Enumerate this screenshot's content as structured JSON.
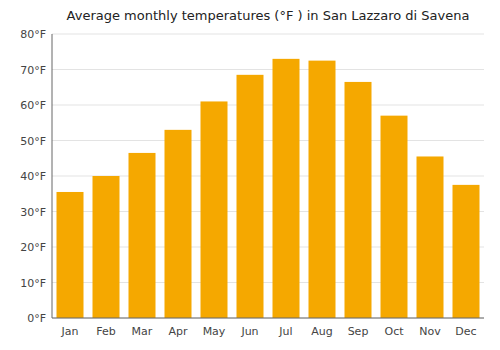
{
  "chart_data": {
    "type": "bar",
    "title": "Average monthly temperatures (°F ) in San Lazzaro di Savena",
    "categories": [
      "Jan",
      "Feb",
      "Mar",
      "Apr",
      "May",
      "Jun",
      "Jul",
      "Aug",
      "Sep",
      "Oct",
      "Nov",
      "Dec"
    ],
    "values": [
      35.5,
      40.0,
      46.5,
      53.0,
      61.0,
      68.5,
      73.0,
      72.5,
      66.5,
      57.0,
      45.5,
      37.5
    ],
    "color": "#F5A800",
    "ylim": [
      0,
      80
    ],
    "yticks": [
      {
        "value": 0,
        "label": "0°F"
      },
      {
        "value": 10,
        "label": "10°F"
      },
      {
        "value": 20,
        "label": "20°F"
      },
      {
        "value": 30,
        "label": "30°F"
      },
      {
        "value": 40,
        "label": "40°F"
      },
      {
        "value": 50,
        "label": "50°F"
      },
      {
        "value": 60,
        "label": "60°F"
      },
      {
        "value": 70,
        "label": "70°F"
      },
      {
        "value": 80,
        "label": "80°F"
      }
    ],
    "grid": true
  }
}
